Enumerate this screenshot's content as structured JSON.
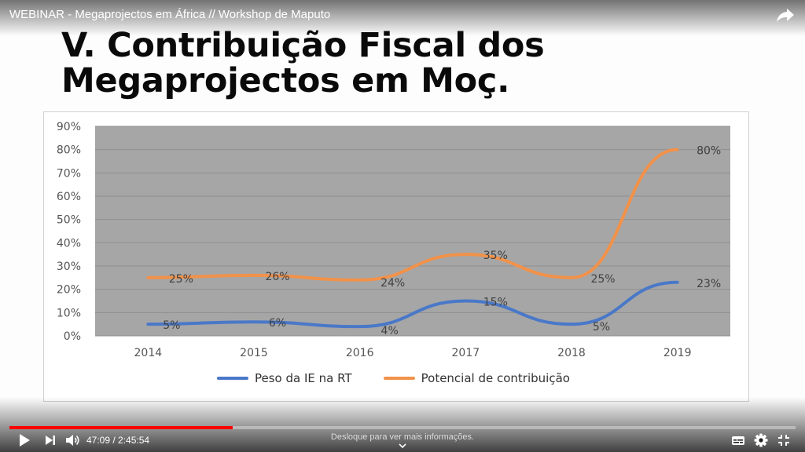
{
  "video": {
    "title": "WEBINAR - Megaprojectos em África // Workshop de Maputo",
    "time_display": "47:09 / 2:45:54",
    "progress": 0.284,
    "hint": "Desloque para ver mais informações."
  },
  "slide": {
    "title": "V. Contribuição Fiscal dos\nMegaprojectos em Moç."
  },
  "colors": {
    "plot_bg": "#a6a6a6",
    "series_blue": "#4a78c8",
    "series_orange": "#f2924a",
    "progress_red": "#ff0000"
  },
  "icons": [
    "share-icon",
    "play-icon",
    "next-icon",
    "volume-icon",
    "subtitles-icon",
    "gear-icon",
    "exit-fullscreen-icon",
    "chevron-down-icon"
  ],
  "chart_data": {
    "type": "line",
    "categories": [
      "2014",
      "2015",
      "2016",
      "2017",
      "2018",
      "2019"
    ],
    "yticks": [
      "0%",
      "10%",
      "20%",
      "30%",
      "40%",
      "50%",
      "60%",
      "70%",
      "80%",
      "90%"
    ],
    "ylim": [
      0,
      90
    ],
    "grid": true,
    "legend_position": "bottom",
    "series": [
      {
        "name": "Peso da IE na RT",
        "color": "#4a78c8",
        "values": [
          5,
          6,
          4,
          15,
          5,
          23
        ],
        "labels": [
          "5%",
          "6%",
          "4%",
          "15%",
          "5%",
          "23%"
        ]
      },
      {
        "name": "Potencial de contribuição",
        "color": "#f2924a",
        "values": [
          25,
          26,
          24,
          35,
          25,
          80
        ],
        "labels": [
          "25%",
          "26%",
          "24%",
          "35%",
          "25%",
          "80%"
        ]
      }
    ]
  }
}
